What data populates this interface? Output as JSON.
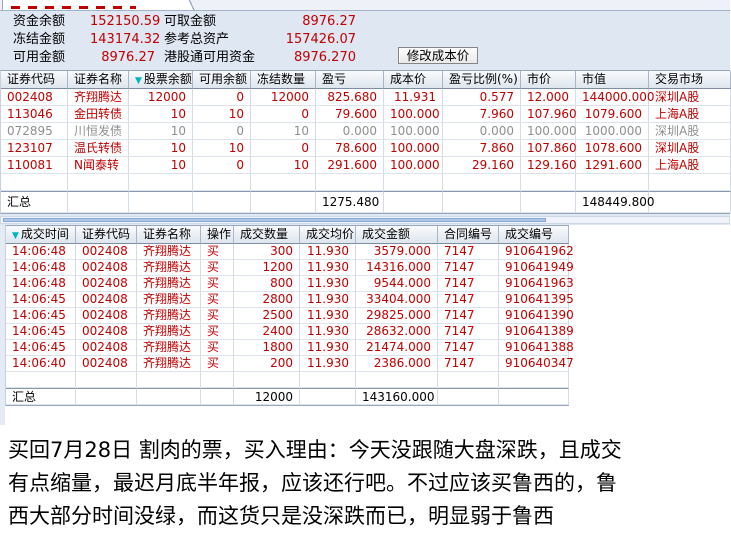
{
  "funds": {
    "rows": [
      {
        "l1": "资金余额",
        "v1": "152150.59",
        "l2": "可取金额",
        "v2": "8976.27"
      },
      {
        "l1": "冻结金额",
        "v1": "143174.32",
        "l2": "参考总资产",
        "v2": "157426.07"
      },
      {
        "l1": "可用金额",
        "v1": "8976.27",
        "l2": "港股通可用资金",
        "v2": "8976.270"
      }
    ],
    "modify_cost_button": "修改成本价"
  },
  "colors": {
    "value_red": "#c00000",
    "muted_gray": "#8f8f8f",
    "sort_teal": "#00b4c4"
  },
  "holdings": {
    "headers": [
      "证券代码",
      "证券名称",
      "股票余额",
      "可用余额",
      "冻结数量",
      "盈亏",
      "成本价",
      "盈亏比例(%)",
      "市价",
      "市值",
      "交易市场"
    ],
    "sort_column": 2,
    "rows": [
      {
        "cells": [
          "002408",
          "齐翔腾达",
          "12000",
          "0",
          "12000",
          "825.680",
          "11.931",
          "0.577",
          "12.000",
          "144000.000",
          "深圳A股"
        ],
        "muted": false
      },
      {
        "cells": [
          "113046",
          "金田转债",
          "10",
          "10",
          "0",
          "79.600",
          "100.000",
          "7.960",
          "107.960",
          "1079.600",
          "上海A股"
        ],
        "muted": false
      },
      {
        "cells": [
          "072895",
          "川恒发债",
          "10",
          "0",
          "10",
          "0.000",
          "100.000",
          "0.000",
          "100.000",
          "1000.000",
          "深圳A股"
        ],
        "muted": true
      },
      {
        "cells": [
          "123107",
          "温氏转债",
          "10",
          "10",
          "0",
          "78.600",
          "100.000",
          "7.860",
          "107.860",
          "1078.600",
          "深圳A股"
        ],
        "muted": false
      },
      {
        "cells": [
          "110081",
          "N闻泰转",
          "10",
          "0",
          "10",
          "291.600",
          "100.000",
          "29.160",
          "129.160",
          "1291.600",
          "上海A股"
        ],
        "muted": false
      }
    ],
    "summary": {
      "cells": [
        "汇总",
        "",
        "",
        "",
        "",
        "1275.480",
        "",
        "",
        "",
        "148449.800",
        ""
      ]
    }
  },
  "trades": {
    "headers": [
      "成交时间",
      "证券代码",
      "证券名称",
      "操作",
      "成交数量",
      "成交均价",
      "成交金额",
      "合同编号",
      "成交编号"
    ],
    "sort_column": 0,
    "rows": [
      {
        "cells": [
          "14:06:48",
          "002408",
          "齐翔腾达",
          "买",
          "300",
          "11.930",
          "3579.000",
          "7147",
          "910641962"
        ]
      },
      {
        "cells": [
          "14:06:48",
          "002408",
          "齐翔腾达",
          "买",
          "1200",
          "11.930",
          "14316.000",
          "7147",
          "910641949"
        ]
      },
      {
        "cells": [
          "14:06:48",
          "002408",
          "齐翔腾达",
          "买",
          "800",
          "11.930",
          "9544.000",
          "7147",
          "910641963"
        ]
      },
      {
        "cells": [
          "14:06:45",
          "002408",
          "齐翔腾达",
          "买",
          "2800",
          "11.930",
          "33404.000",
          "7147",
          "910641395"
        ]
      },
      {
        "cells": [
          "14:06:45",
          "002408",
          "齐翔腾达",
          "买",
          "2500",
          "11.930",
          "29825.000",
          "7147",
          "910641390"
        ]
      },
      {
        "cells": [
          "14:06:45",
          "002408",
          "齐翔腾达",
          "买",
          "2400",
          "11.930",
          "28632.000",
          "7147",
          "910641389"
        ]
      },
      {
        "cells": [
          "14:06:45",
          "002408",
          "齐翔腾达",
          "买",
          "1800",
          "11.930",
          "21474.000",
          "7147",
          "910641388"
        ]
      },
      {
        "cells": [
          "14:06:40",
          "002408",
          "齐翔腾达",
          "买",
          "200",
          "11.930",
          "2386.000",
          "7147",
          "910640347"
        ]
      }
    ],
    "summary": {
      "cells": [
        "汇总",
        "",
        "",
        "",
        "12000",
        "",
        "143160.000",
        "",
        ""
      ]
    }
  },
  "note": {
    "lines": [
      "买回7月28日 割肉的票，买入理由：今天没跟随大盘深跌，且成交",
      "有点缩量，最迟月底半年报，应该还行吧。不过应该买鲁西的，鲁",
      "西大部分时间没绿，而这货只是没深跌而已，明显弱于鲁西"
    ]
  }
}
